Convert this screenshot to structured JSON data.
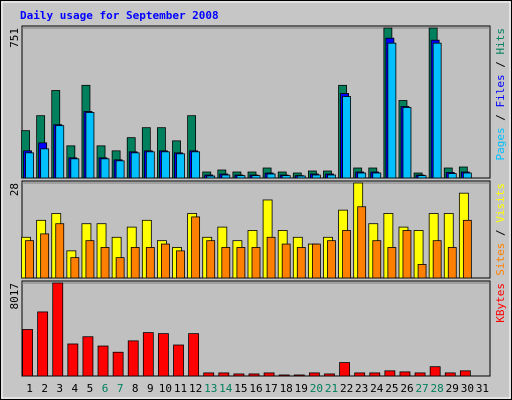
{
  "chart_data": {
    "type": "bar",
    "title": "Daily usage for September 2008",
    "categories": [
      "1",
      "2",
      "3",
      "4",
      "5",
      "6",
      "7",
      "8",
      "9",
      "10",
      "11",
      "12",
      "13",
      "14",
      "15",
      "16",
      "17",
      "18",
      "19",
      "20",
      "21",
      "22",
      "23",
      "24",
      "25",
      "26",
      "27",
      "28",
      "29",
      "30",
      "31"
    ],
    "category_colors": [
      "#000000",
      "#000000",
      "#000000",
      "#000000",
      "#000000",
      "#00805c",
      "#00805c",
      "#000000",
      "#000000",
      "#000000",
      "#000000",
      "#000000",
      "#00805c",
      "#00805c",
      "#000000",
      "#000000",
      "#000000",
      "#000000",
      "#000000",
      "#00805c",
      "#00805c",
      "#000000",
      "#000000",
      "#000000",
      "#000000",
      "#000000",
      "#00805c",
      "#00805c",
      "#000000",
      "#000000",
      "#000000"
    ],
    "legend_separator": " / ",
    "panels": [
      {
        "ylim": [
          0,
          751
        ],
        "yticks": [
          751
        ],
        "series": [
          {
            "name": "Hits",
            "color": "#00805c",
            "values": [
              237,
              312,
              438,
              161,
              464,
              161,
              136,
              202,
              252,
              252,
              186,
              312,
              30,
              40,
              30,
              30,
              50,
              30,
              25,
              35,
              35,
              464,
              50,
              50,
              751,
              388,
              25,
              751,
              50,
              55,
              0
            ]
          },
          {
            "name": "Files",
            "color": "#0000ff",
            "values": [
              136,
              176,
              267,
              101,
              333,
              101,
              91,
              131,
              136,
              136,
              126,
              136,
              15,
              20,
              15,
              15,
              25,
              15,
              12,
              20,
              20,
              423,
              30,
              30,
              700,
              358,
              15,
              690,
              28,
              30,
              0
            ]
          },
          {
            "name": "Pages",
            "color": "#00c0ff",
            "values": [
              126,
              146,
              262,
              96,
              328,
              96,
              86,
              126,
              131,
              131,
              121,
              131,
              10,
              15,
              12,
              12,
              20,
              12,
              10,
              15,
              15,
              408,
              25,
              25,
              675,
              353,
              12,
              675,
              22,
              25,
              0
            ]
          }
        ]
      },
      {
        "ylim": [
          0,
          28
        ],
        "yticks": [
          28
        ],
        "series": [
          {
            "name": "Visits",
            "color": "#ffff00",
            "values": [
              12,
              17,
              19,
              8,
              16,
              16,
              12,
              15,
              17,
              11,
              9,
              19,
              12,
              15,
              11,
              14,
              23,
              14,
              12,
              10,
              12,
              20,
              28,
              16,
              19,
              15,
              14,
              19,
              19,
              25,
              0
            ]
          },
          {
            "name": "Sites",
            "color": "#ff8000",
            "values": [
              11,
              13,
              16,
              6,
              11,
              9,
              6,
              9,
              9,
              10,
              8,
              18,
              11,
              9,
              9,
              9,
              12,
              10,
              9,
              10,
              11,
              14,
              21,
              11,
              9,
              14,
              4,
              11,
              9,
              17,
              0
            ]
          }
        ]
      },
      {
        "ylim": [
          0,
          8017
        ],
        "yticks": [
          8017
        ],
        "series": [
          {
            "name": "KBytes",
            "color": "#ff0000",
            "values": [
              4008,
              5523,
              8017,
              2761,
              3385,
              2583,
              2049,
              3029,
              3741,
              3652,
              2672,
              3652,
              267,
              267,
              178,
              178,
              267,
              89,
              89,
              267,
              178,
              1158,
              267,
              267,
              445,
              356,
              267,
              802,
              267,
              445,
              0
            ]
          }
        ]
      }
    ]
  }
}
